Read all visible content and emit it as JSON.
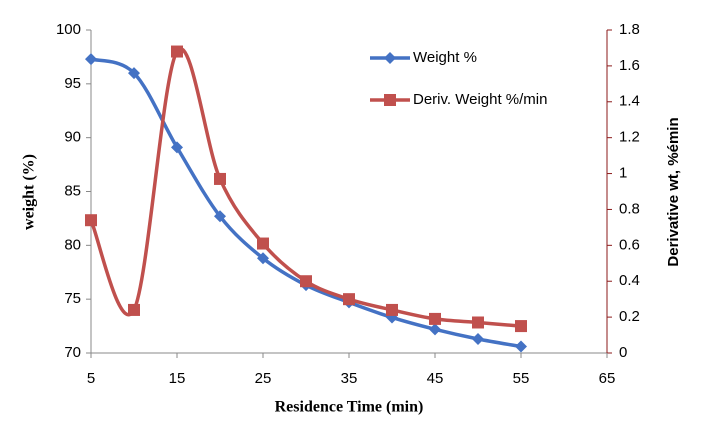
{
  "chart_data": {
    "type": "line",
    "x_label": "Residence Time (min)",
    "y_label": "weight (%)",
    "y2_label": "Derivative wt, %émin",
    "x": [
      5,
      10,
      15,
      20,
      25,
      30,
      35,
      40,
      45,
      50,
      55
    ],
    "series": [
      {
        "name": "Weight %",
        "color": "#4472c4",
        "marker": "diamond",
        "values": [
          97.3,
          96.0,
          89.1,
          82.7,
          78.8,
          76.3,
          74.7,
          73.3,
          72.2,
          71.3,
          70.6
        ]
      },
      {
        "name": "Deriv. Weight %/min",
        "color": "#c0504d",
        "marker": "square",
        "axis": "y2",
        "values": [
          0.74,
          0.24,
          1.68,
          0.97,
          0.61,
          0.4,
          0.3,
          0.24,
          0.19,
          0.17,
          0.15
        ]
      }
    ],
    "xlim": [
      5,
      65
    ],
    "xticks": [
      5,
      15,
      25,
      35,
      45,
      55,
      65
    ],
    "ylim": [
      70,
      100
    ],
    "yticks": [
      70,
      75,
      80,
      85,
      90,
      95,
      100
    ],
    "y2lim": [
      0,
      1.8
    ],
    "y2ticks": [
      0,
      0.2,
      0.4,
      0.6,
      0.8,
      1,
      1.2,
      1.4,
      1.6,
      1.8
    ],
    "smooth": true,
    "grid": false,
    "legend": "upper right"
  }
}
